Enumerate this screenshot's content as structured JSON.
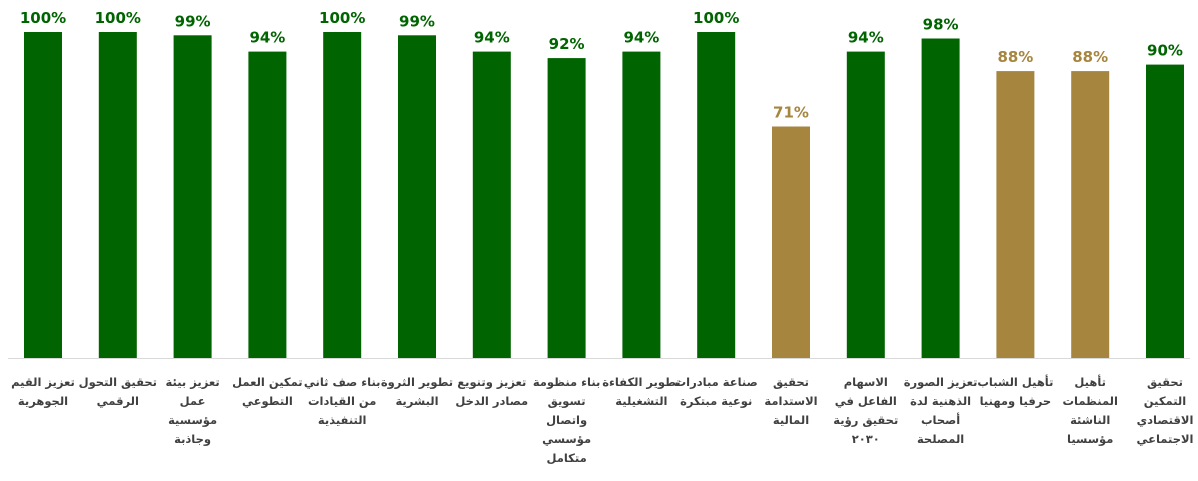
{
  "chart_data": {
    "type": "bar",
    "title": "",
    "xlabel": "",
    "ylabel": "",
    "ylim": [
      0,
      100
    ],
    "grid": false,
    "legend": "none",
    "colors": {
      "primary": "#006400",
      "secondary": "#A6853F"
    },
    "categories": [
      [
        "تعزيز القيم",
        "الجوهرية"
      ],
      [
        "تحقيق التحول",
        "الرقمي"
      ],
      [
        "تعزيز بيئة",
        "عمل",
        "مؤسسية",
        "وجاذبة"
      ],
      [
        "تمكين العمل",
        "التطوعي"
      ],
      [
        "بناء صف ثاني",
        "من القيادات",
        "التنفيذية"
      ],
      [
        "تطوير الثروة",
        "البشرية"
      ],
      [
        "تعزيز وتنويع",
        "مصادر الدخل"
      ],
      [
        "بناء منظومة",
        "تسويق",
        "واتصال",
        "مؤسسي",
        "متكامل"
      ],
      [
        "تطوير الكفاءة",
        "التشغيلية"
      ],
      [
        "صناعة مبادرات",
        "نوعية مبتكرة"
      ],
      [
        "تحقيق",
        "الاستدامة",
        "المالية"
      ],
      [
        "الاسهام",
        "الفاعل في",
        "تحقيق رؤية",
        "٢٠٣٠"
      ],
      [
        "تعزيز الصورة",
        "الذهنية لدة",
        "أصحاب",
        "المصلحة"
      ],
      [
        "تأهيل الشباب",
        "حرفيا ومهنيا"
      ],
      [
        "تأهيل",
        "المنظمات",
        "الناشئة",
        "مؤسسيا"
      ],
      [
        "تحقيق",
        "التمكين",
        "الاقتصادي",
        "الاجتماعي"
      ]
    ],
    "values": [
      100,
      100,
      99,
      94,
      100,
      99,
      94,
      92,
      94,
      100,
      71,
      94,
      98,
      88,
      88,
      90
    ],
    "value_labels": [
      "100%",
      "100%",
      "99%",
      "94%",
      "100%",
      "99%",
      "94%",
      "92%",
      "94%",
      "100%",
      "71%",
      "94%",
      "98%",
      "88%",
      "88%",
      "90%"
    ],
    "bar_colors": [
      "#006400",
      "#006400",
      "#006400",
      "#006400",
      "#006400",
      "#006400",
      "#006400",
      "#006400",
      "#006400",
      "#006400",
      "#A6853F",
      "#006400",
      "#006400",
      "#A6853F",
      "#A6853F",
      "#006400"
    ]
  }
}
